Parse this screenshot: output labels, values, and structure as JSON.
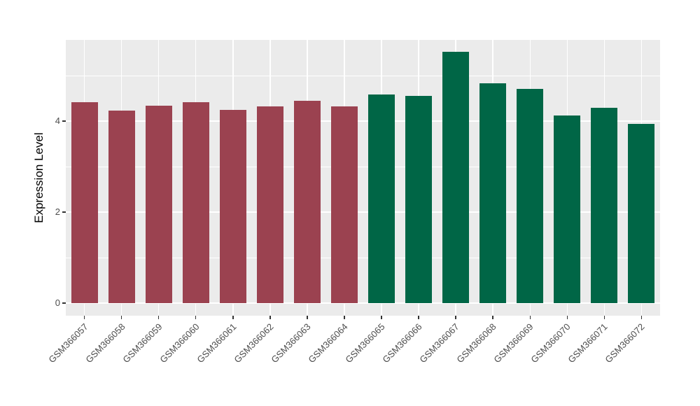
{
  "chart_data": {
    "type": "bar",
    "title": "",
    "xlabel": "",
    "ylabel": "Expression Level",
    "categories": [
      "GSM366057",
      "GSM366058",
      "GSM366059",
      "GSM366060",
      "GSM366061",
      "GSM366062",
      "GSM366063",
      "GSM366064",
      "GSM366065",
      "GSM366066",
      "GSM366067",
      "GSM366068",
      "GSM366069",
      "GSM366070",
      "GSM366071",
      "GSM366072"
    ],
    "values": [
      4.42,
      4.23,
      4.34,
      4.41,
      4.25,
      4.32,
      4.44,
      4.33,
      4.58,
      4.56,
      5.53,
      4.83,
      4.71,
      4.13,
      4.3,
      3.94
    ],
    "bar_groups": [
      1,
      1,
      1,
      1,
      1,
      1,
      1,
      1,
      2,
      2,
      2,
      2,
      2,
      2,
      2,
      2
    ],
    "group_colors": [
      "#9B4250",
      "#006646"
    ],
    "ylim": [
      0,
      5.8
    ],
    "yticks": [
      0,
      2,
      4
    ],
    "minor_gridlines": [
      1,
      3,
      5
    ],
    "grid": true,
    "legend": "none",
    "panel_bg": "#EBEBEB",
    "grid_color": "#FFFFFF",
    "tick_color": "#333333",
    "tick_label_color": "#4D4D4D",
    "axis_title_color": "#000000"
  }
}
